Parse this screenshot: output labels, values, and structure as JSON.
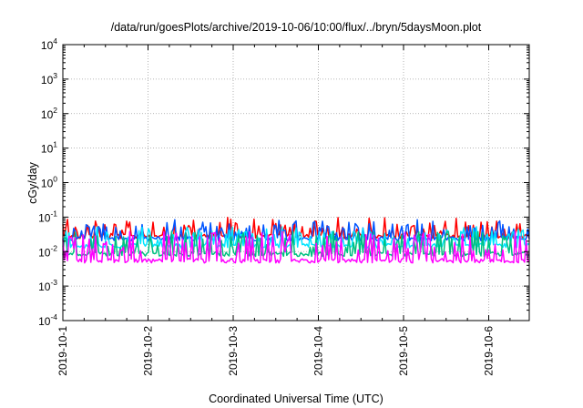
{
  "chart_data": {
    "type": "line",
    "title": "/data/run/goesPlots/archive/2019-10-06/10:00/flux/../bryn/5daysMoon.plot",
    "xlabel": "Coordinated Universal Time (UTC)",
    "ylabel": "cGy/day",
    "x_start": "2019-10-01",
    "x_end": "2019-10-06 10:00",
    "x_ticks": [
      "2019-10-1",
      "2019-10-2",
      "2019-10-3",
      "2019-10-4",
      "2019-10-5",
      "2019-10-6"
    ],
    "y_scale": "log",
    "ylim": [
      0.0001,
      10000
    ],
    "y_ticks": [
      {
        "base": "10",
        "exp": "-4"
      },
      {
        "base": "10",
        "exp": "-3"
      },
      {
        "base": "10",
        "exp": "-2"
      },
      {
        "base": "10",
        "exp": "-1"
      },
      {
        "base": "10",
        "exp": "0"
      },
      {
        "base": "10",
        "exp": "1"
      },
      {
        "base": "10",
        "exp": "2"
      },
      {
        "base": "10",
        "exp": "3"
      },
      {
        "base": "10",
        "exp": "4"
      }
    ],
    "grid": true,
    "series": [
      {
        "color": "#ff0000",
        "base": 0.028,
        "spike_level": 0.045,
        "spike_prob": 0.35,
        "min_level": 0.022,
        "seed": 11
      },
      {
        "color": "#0055ff",
        "base": 0.024,
        "spike_level": 0.05,
        "spike_prob": 0.32,
        "min_level": 0.013,
        "seed": 23
      },
      {
        "color": "#00e5ff",
        "base": 0.015,
        "spike_level": 0.03,
        "spike_prob": 0.3,
        "min_level": 0.009,
        "seed": 37
      },
      {
        "color": "#00c080",
        "base": 0.0085,
        "spike_level": 0.03,
        "spike_prob": 0.28,
        "min_level": 0.005,
        "seed": 41
      },
      {
        "color": "#ff00ff",
        "base": 0.0055,
        "spike_level": 0.03,
        "spike_prob": 0.3,
        "min_level": 0.0042,
        "seed": 53
      }
    ]
  }
}
